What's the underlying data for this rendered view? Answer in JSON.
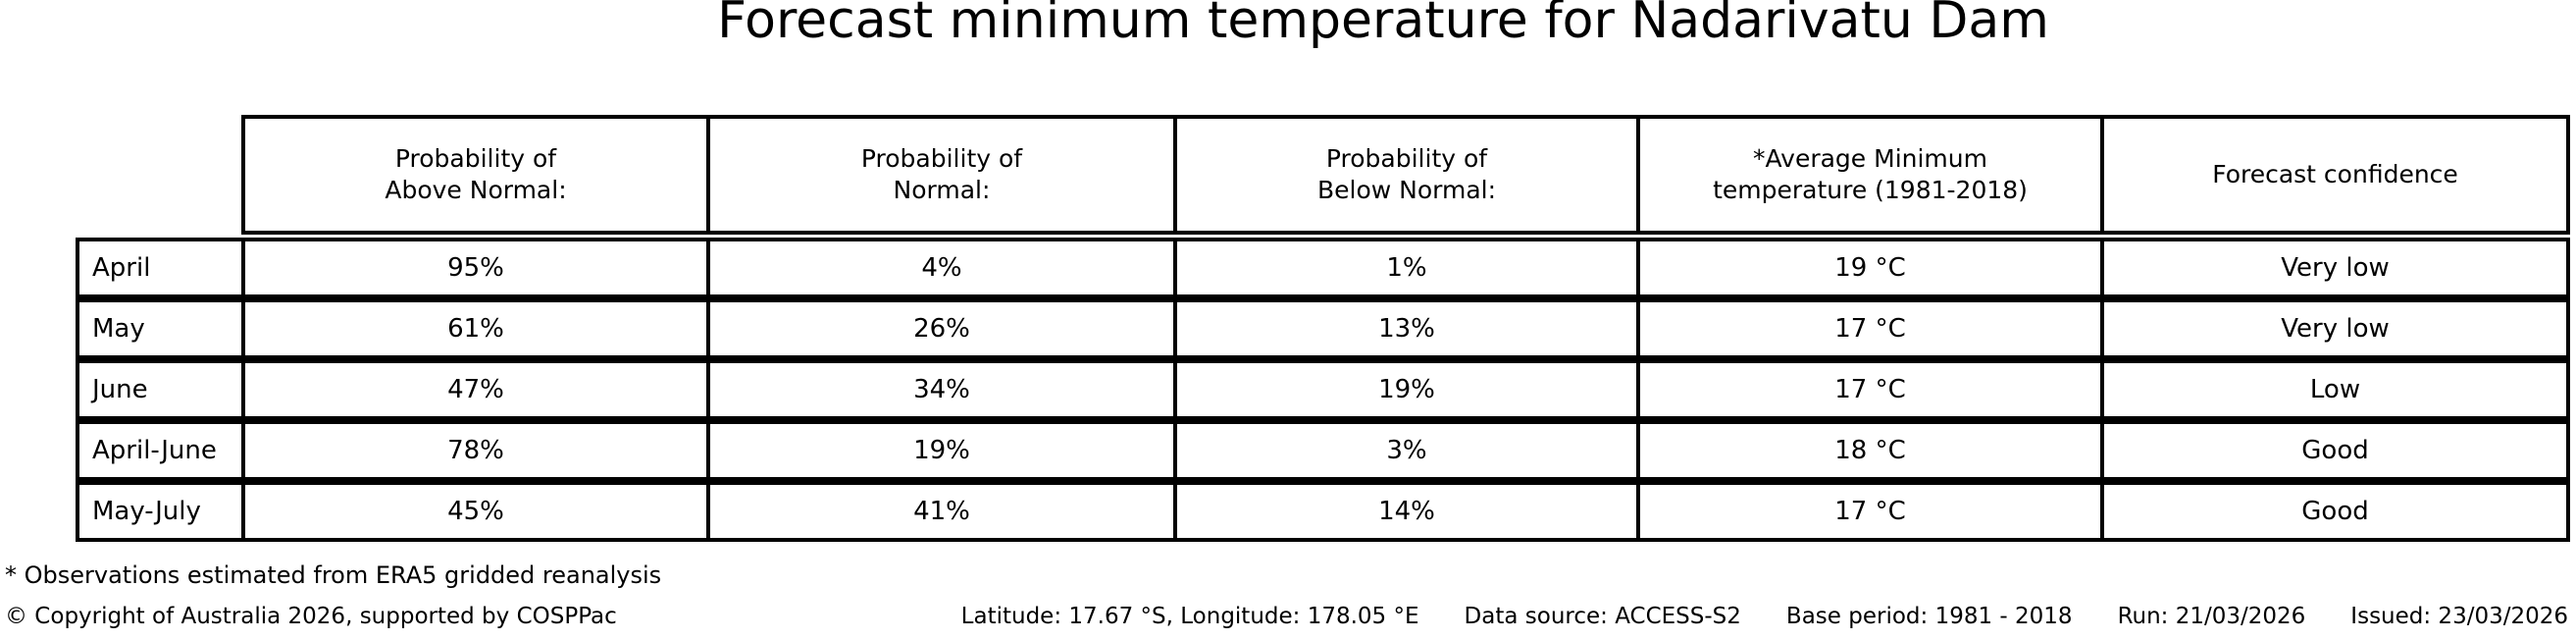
{
  "title": "Forecast minimum temperature for Nadarivatu Dam",
  "colors": {
    "background": "#ffffff",
    "text": "#000000",
    "table_border": "#000000"
  },
  "chart_data": {
    "type": "table",
    "title": "Forecast minimum temperature for Nadarivatu Dam",
    "columns": [
      "Probability of\nAbove Normal:",
      "Probability of\nNormal:",
      "Probability of\nBelow Normal:",
      "*Average Minimum\ntemperature (1981-2018)",
      "Forecast confidence"
    ],
    "rows": [
      {
        "period": "April",
        "above": "95%",
        "normal": "4%",
        "below": "1%",
        "avg_min": "19 °C",
        "confidence": "Very low"
      },
      {
        "period": "May",
        "above": "61%",
        "normal": "26%",
        "below": "13%",
        "avg_min": "17 °C",
        "confidence": "Very low"
      },
      {
        "period": "June",
        "above": "47%",
        "normal": "34%",
        "below": "19%",
        "avg_min": "17 °C",
        "confidence": "Low"
      },
      {
        "period": "April-June",
        "above": "78%",
        "normal": "19%",
        "below": "3%",
        "avg_min": "18 °C",
        "confidence": "Good"
      },
      {
        "period": "May-July",
        "above": "45%",
        "normal": "41%",
        "below": "14%",
        "avg_min": "17 °C",
        "confidence": "Good"
      }
    ]
  },
  "footnote": "* Observations estimated from ERA5 gridded reanalysis",
  "footer": {
    "copyright": "© Copyright of Australia 2026, supported by COSPPac",
    "location": "Latitude: 17.67 °S, Longitude: 178.05 °E",
    "data_source": "Data source: ACCESS-S2",
    "base_period": "Base period: 1981 - 2018",
    "run": "Run: 21/03/2026",
    "issued": "Issued: 23/03/2026"
  }
}
